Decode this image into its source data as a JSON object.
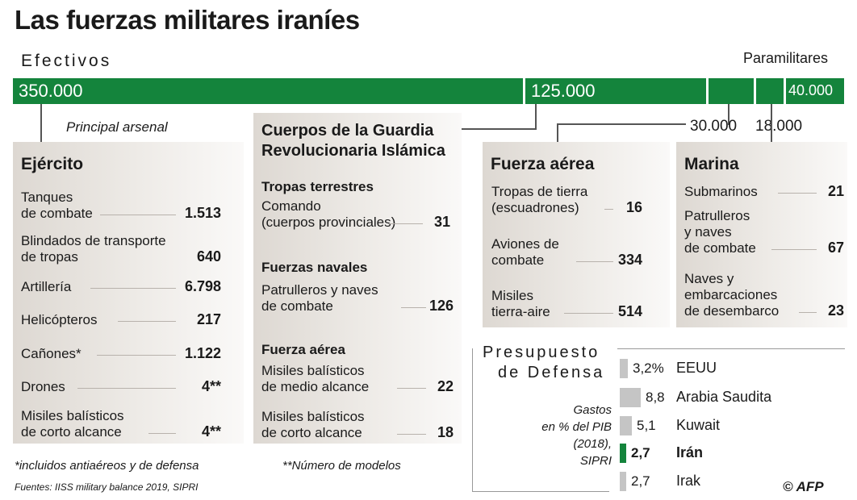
{
  "title": "Las fuerzas militares iraníes",
  "efectivos_label": "Efectivos",
  "paramilitares_label": "Paramilitares",
  "colors": {
    "green": "#14843c",
    "gray_bar": "#c5c5c5"
  },
  "personnel": {
    "ejercito": "350.000",
    "guardia": "125.000",
    "fuerza_aerea": "30.000",
    "marina": "18.000",
    "paramilitares": "40.000"
  },
  "principal_arsenal": "Principal arsenal",
  "ejercito": {
    "title": "Ejército",
    "items": [
      {
        "label": "Tanques\nde combate",
        "value": "1.513"
      },
      {
        "label": "Blindados de transporte\nde tropas",
        "value": "640"
      },
      {
        "label": "Artillería",
        "value": "6.798"
      },
      {
        "label": "Helicópteros",
        "value": "217"
      },
      {
        "label": "Cañones*",
        "value": "1.122"
      },
      {
        "label": "Drones",
        "value": "4**"
      },
      {
        "label": "Misiles balísticos\nde corto alcance",
        "value": "4**"
      }
    ]
  },
  "guardia": {
    "title": "Cuerpos de la Guardia\nRevolucionaria Islámica",
    "sections": [
      {
        "heading": "Tropas terrestres",
        "items": [
          {
            "label": "Comando\n(cuerpos provinciales)",
            "value": "31"
          }
        ]
      },
      {
        "heading": "Fuerzas navales",
        "items": [
          {
            "label": "Patrulleros y naves\nde combate",
            "value": "126"
          }
        ]
      },
      {
        "heading": "Fuerza aérea",
        "items": [
          {
            "label": "Misiles balísticos\nde medio alcance",
            "value": "22"
          },
          {
            "label": "Misiles balísticos\nde corto alcance",
            "value": "18"
          }
        ]
      }
    ]
  },
  "fuerza_aerea": {
    "title": "Fuerza aérea",
    "items": [
      {
        "label": "Tropas de tierra\n(escuadrones)",
        "value": "16"
      },
      {
        "label": "Aviones de\ncombate",
        "value": "334"
      },
      {
        "label": "Misiles\ntierra-aire",
        "value": "514"
      }
    ]
  },
  "marina": {
    "title": "Marina",
    "items": [
      {
        "label": "Submarinos",
        "value": "21"
      },
      {
        "label": "Patrulleros\ny naves\nde combate",
        "value": "67"
      },
      {
        "label": "Naves y\nembarcaciones\nde desembarco",
        "value": "23"
      }
    ]
  },
  "defense": {
    "title_line1": "Presupuesto",
    "title_line2": "de Defensa",
    "note": "Gastos\nen % del PIB\n(2018),\nSIPRI"
  },
  "chart_data": {
    "type": "bar",
    "title": "Presupuesto de Defensa",
    "ylabel": "Gastos en % del PIB (2018), SIPRI",
    "categories": [
      "EEUU",
      "Arabia Saudita",
      "Kuwait",
      "Irán",
      "Irak"
    ],
    "values": [
      3.2,
      8.8,
      5.1,
      2.7,
      2.7
    ],
    "value_labels": [
      "3,2%",
      "8,8",
      "5,1",
      "2,7",
      "2,7"
    ],
    "highlight": "Irán"
  },
  "footnote1": "*incluidos antiaéreos y de defensa",
  "footnote2": "**Número de modelos",
  "sources": "Fuentes: IISS military balance 2019, SIPRI",
  "credit": "© AFP"
}
